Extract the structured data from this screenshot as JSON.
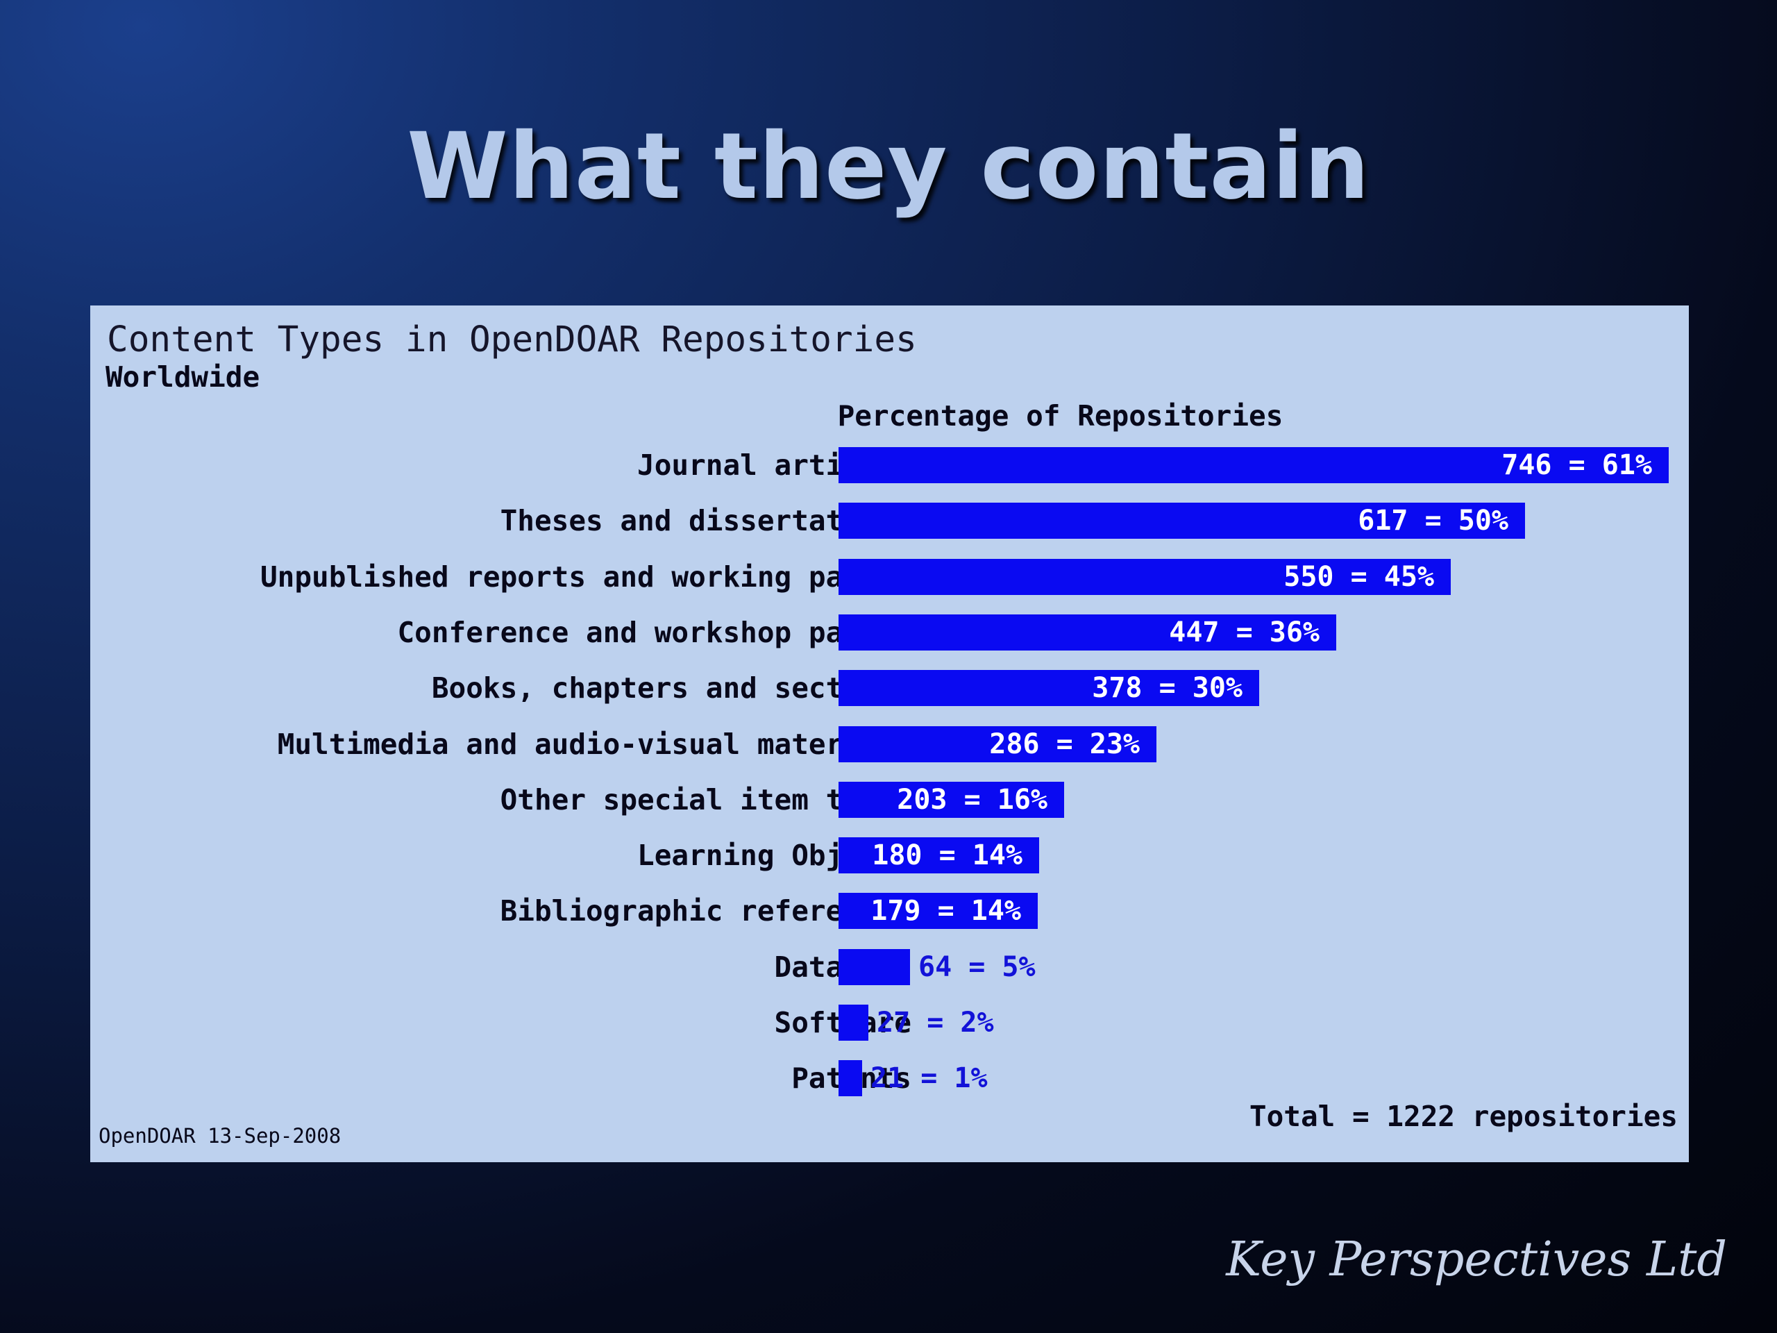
{
  "slide": {
    "title": "What they contain",
    "brand": "Key Perspectives Ltd"
  },
  "chart_data": {
    "type": "bar",
    "orientation": "horizontal",
    "title": "Content Types in OpenDOAR Repositories",
    "subtitle": "Worldwide",
    "axis_heading": "Percentage of Repositories",
    "categories": [
      "Journal articles",
      "Theses and dissertations",
      "Unpublished reports and working papers",
      "Conference and workshop papers",
      "Books, chapters and sections",
      "Multimedia and audio-visual materials",
      "Other special item types",
      "Learning Objects",
      "Bibliographic references",
      "Datasets",
      "Software",
      "Patents"
    ],
    "series": [
      {
        "counts": [
          746,
          617,
          550,
          447,
          378,
          286,
          203,
          180,
          179,
          64,
          27,
          21
        ],
        "percentages": [
          61,
          50,
          45,
          36,
          30,
          23,
          16,
          14,
          14,
          5,
          2,
          1
        ]
      }
    ],
    "value_labels": [
      "746 = 61%",
      "617 = 50%",
      "550 = 45%",
      "447 = 36%",
      "378 = 30%",
      "286 = 23%",
      "203 = 16%",
      "180 = 14%",
      "179 = 14%",
      "64 = 5%",
      "27 = 2%",
      "21 = 1%"
    ],
    "total_label": "Total = 1222 repositories",
    "source_label": "OpenDOAR 13-Sep-2008",
    "colors": {
      "bar": "#0a0af2",
      "panel": "#bdd1ee",
      "inside_label": "#ffffff",
      "outside_label": "#1212d8"
    },
    "grid": false,
    "legend": "none"
  }
}
